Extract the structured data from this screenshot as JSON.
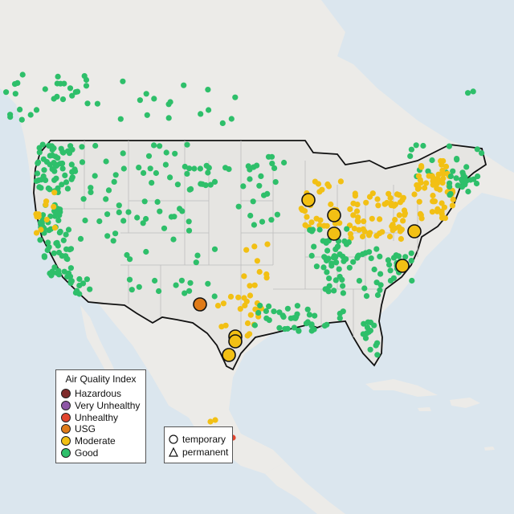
{
  "legend": {
    "title": "Air Quality Index",
    "categories": [
      {
        "label": "Hazardous",
        "color": "#7e2a2a"
      },
      {
        "label": "Very Unhealthy",
        "color": "#8e57a6"
      },
      {
        "label": "Unhealthy",
        "color": "#e2452e"
      },
      {
        "label": "USG",
        "color": "#e07b19"
      },
      {
        "label": "Moderate",
        "color": "#f2c014"
      },
      {
        "label": "Good",
        "color": "#2ebf6a"
      }
    ]
  },
  "site_types": [
    {
      "label": "temporary",
      "icon": "circle-icon"
    },
    {
      "label": "permanent",
      "icon": "triangle-icon"
    }
  ],
  "colors": {
    "water": "#dbe6ee",
    "land": "#ece9e4",
    "us_land": "#e6e4e0",
    "border": "#111111",
    "state_line": "#bdbdbd",
    "no_data_site": "#b9b9b9"
  }
}
